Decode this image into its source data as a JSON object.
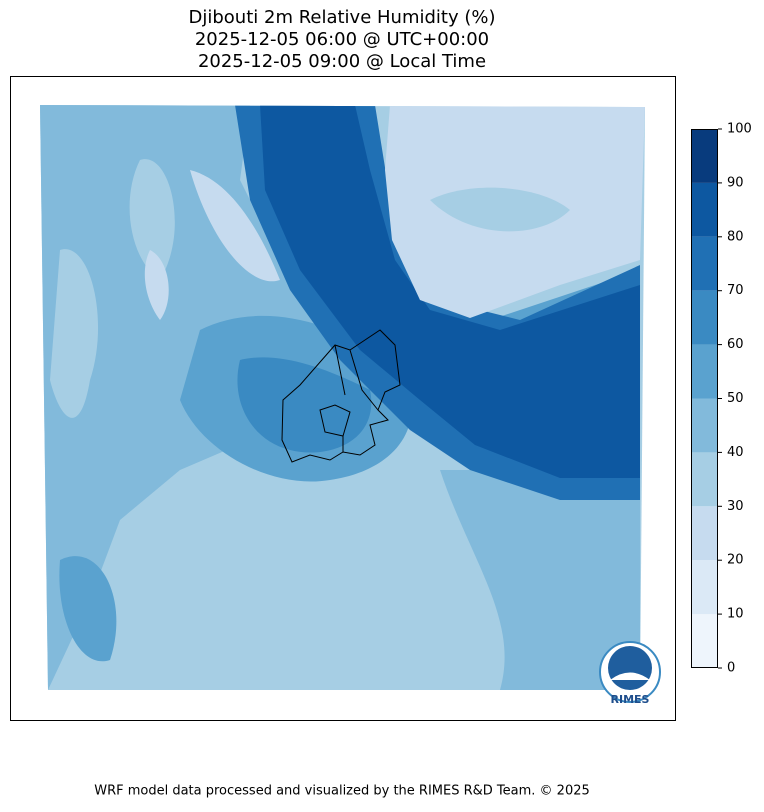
{
  "title": [
    "Djibouti 2m Relative Humidity (%)",
    "2025-12-05 06:00 @ UTC+00:00",
    "2025-12-05 09:00 @ Local Time"
  ],
  "colorbar": {
    "lim": [
      0,
      100
    ],
    "levels": [
      0,
      10,
      20,
      30,
      40,
      50,
      60,
      70,
      80,
      90,
      100
    ],
    "colors": [
      "#eef5fc",
      "#dbe9f6",
      "#c6dbef",
      "#a6cee4",
      "#82badb",
      "#5aa2cf",
      "#3a8ac2",
      "#2070b4",
      "#0d58a1",
      "#083b7d"
    ]
  },
  "logo": "RIMES",
  "footer": "WRF model data processed and visualized by the RIMES R&D Team. © 2025"
}
